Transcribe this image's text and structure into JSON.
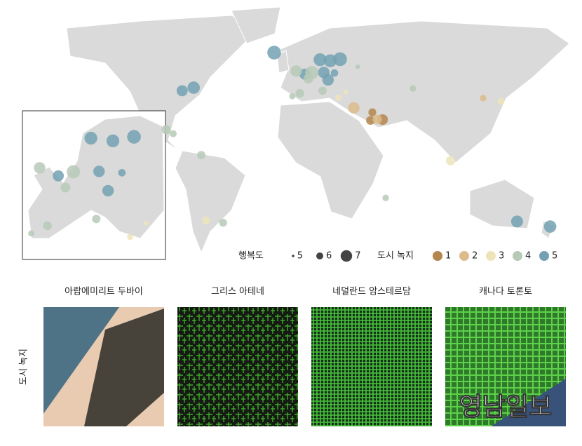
{
  "legend": {
    "happiness": {
      "label": "행복도",
      "items": [
        5,
        6,
        7
      ]
    },
    "green": {
      "label": "도시 녹지",
      "items": [
        1,
        2,
        3,
        4,
        5
      ],
      "colors": [
        "#b5864e",
        "#dcbb8c",
        "#ede4ba",
        "#b7cab7",
        "#73a1b2"
      ]
    }
  },
  "points": [
    {
      "lon": -22,
      "lat": 64,
      "happiness": 7.5,
      "green": 5
    },
    {
      "lon": -79.4,
      "lat": 43.7,
      "happiness": 7.2,
      "green": 5
    },
    {
      "lon": -87.6,
      "lat": 41.9,
      "happiness": 6.9,
      "green": 5
    },
    {
      "lon": -99,
      "lat": 19.4,
      "happiness": 6.5,
      "green": 4
    },
    {
      "lon": -94,
      "lat": 17,
      "happiness": 6,
      "green": 4
    },
    {
      "lon": -74,
      "lat": 4.6,
      "happiness": 6.3,
      "green": 4
    },
    {
      "lon": -58.4,
      "lat": -34.6,
      "happiness": 6.2,
      "green": 4
    },
    {
      "lon": -70.6,
      "lat": -33.4,
      "happiness": 6.2,
      "green": 3
    },
    {
      "lon": 55.3,
      "lat": 25.2,
      "happiness": 6.8,
      "green": 1
    },
    {
      "lon": 46.7,
      "lat": 24.7,
      "happiness": 6.4,
      "green": 1
    },
    {
      "lon": 48,
      "lat": 29.4,
      "happiness": 6.2,
      "green": 1
    },
    {
      "lon": 51.5,
      "lat": 25.3,
      "happiness": 6.5,
      "green": 2
    },
    {
      "lon": 34.8,
      "lat": 32,
      "happiness": 7,
      "green": 2
    },
    {
      "lon": 29,
      "lat": 41,
      "happiness": 5.5,
      "green": 3
    },
    {
      "lon": 37.6,
      "lat": 55.8,
      "happiness": 5.5,
      "green": 4
    },
    {
      "lon": 18,
      "lat": 59.3,
      "happiness": 7.3,
      "green": 5
    },
    {
      "lon": 25,
      "lat": 60.2,
      "happiness": 7.5,
      "green": 5
    },
    {
      "lon": 10.7,
      "lat": 59.9,
      "happiness": 7.3,
      "green": 5
    },
    {
      "lon": -0.1,
      "lat": 51.5,
      "happiness": 6.9,
      "green": 5
    },
    {
      "lon": 2.3,
      "lat": 48.9,
      "happiness": 6.6,
      "green": 4
    },
    {
      "lon": 13.4,
      "lat": 52.5,
      "happiness": 7,
      "green": 5
    },
    {
      "lon": 4.9,
      "lat": 52.4,
      "happiness": 7.4,
      "green": 4
    },
    {
      "lon": -3.7,
      "lat": 40.4,
      "happiness": 6.4,
      "green": 4
    },
    {
      "lon": -9.1,
      "lat": 38.7,
      "happiness": 5.8,
      "green": 4
    },
    {
      "lon": 12.5,
      "lat": 41.9,
      "happiness": 6.3,
      "green": 4
    },
    {
      "lon": 23.7,
      "lat": 37.9,
      "happiness": 5.8,
      "green": 3
    },
    {
      "lon": 21,
      "lat": 52.2,
      "happiness": 6.1,
      "green": 5
    },
    {
      "lon": 16.4,
      "lat": 48.2,
      "happiness": 7,
      "green": 5
    },
    {
      "lon": -6.3,
      "lat": 53.3,
      "happiness": 7,
      "green": 4
    },
    {
      "lon": 76.9,
      "lat": 43.2,
      "happiness": 5.9,
      "green": 4
    },
    {
      "lon": 127,
      "lat": 37.6,
      "happiness": 5.9,
      "green": 2
    },
    {
      "lon": 139.7,
      "lat": 35.7,
      "happiness": 6,
      "green": 3
    },
    {
      "lon": 103.8,
      "lat": 1.35,
      "happiness": 6.5,
      "green": 3
    },
    {
      "lon": 57.5,
      "lat": -20.2,
      "happiness": 5.9,
      "green": 4
    },
    {
      "lon": 151.2,
      "lat": -33.9,
      "happiness": 7.1,
      "green": 5
    },
    {
      "lon": 174.8,
      "lat": -36.8,
      "happiness": 7.2,
      "green": 5
    }
  ],
  "panels": {
    "y_label": "도시 녹지",
    "titles": [
      "아랍에미리트 두바이",
      "그리스 아테네",
      "네덜란드 암스테르담",
      "캐나다 토론토"
    ],
    "watermark": "영남일보"
  }
}
